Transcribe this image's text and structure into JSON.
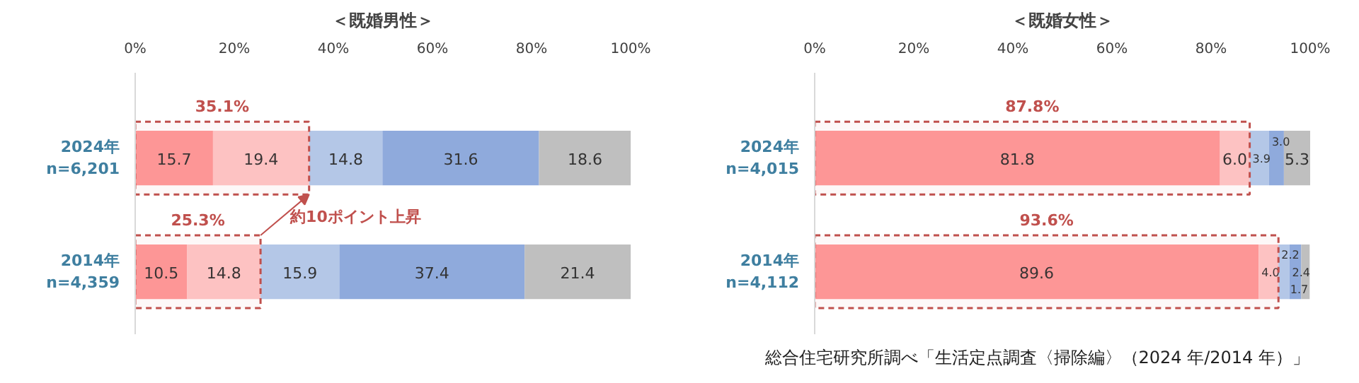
{
  "chart_data": [
    {
      "type": "bar",
      "title": "＜既婚男性＞",
      "orientation": "horizontal",
      "stacked": true,
      "grid": false,
      "categories": [
        "2024年\nn=6,201",
        "2014年\nn=4,359"
      ],
      "series": [
        {
          "color": "#ff9999",
          "values": [
            15.7,
            10.5
          ],
          "value_labels": [
            "15.7",
            "10.5"
          ]
        },
        {
          "color": "#ffc7c7",
          "values": [
            19.4,
            14.8
          ],
          "value_labels": [
            "19.4",
            "14.8"
          ]
        },
        {
          "color": "#b4c7e7",
          "values": [
            14.8,
            15.9
          ],
          "value_labels": [
            "14.8",
            "15.9"
          ]
        },
        {
          "color": "#8faadc",
          "values": [
            31.6,
            37.4
          ],
          "value_labels": [
            "31.6",
            "37.4"
          ]
        },
        {
          "color": "#bfbfbf",
          "values": [
            18.6,
            21.4
          ],
          "value_labels": [
            "18.6",
            "21.4"
          ]
        }
      ],
      "xlim": [
        0,
        100
      ],
      "xticks": [
        {
          "value": 0,
          "label": "0%"
        },
        {
          "value": 20,
          "label": "20%"
        },
        {
          "value": 40,
          "label": "40%"
        },
        {
          "value": 60,
          "label": "60%"
        },
        {
          "value": 80,
          "label": "80%"
        },
        {
          "value": 100,
          "label": "100%"
        }
      ],
      "bands": [
        {
          "axis": "x",
          "from": 0,
          "to": 35.1,
          "label": "35.1%",
          "color": "#c0504d"
        },
        {
          "axis": "x",
          "from": 0,
          "to": 25.3,
          "label": "25.3%",
          "color": "#c0504d"
        }
      ],
      "annotations": [
        "約10ポイント上昇"
      ]
    },
    {
      "type": "bar",
      "title": "＜既婚女性＞",
      "orientation": "horizontal",
      "stacked": true,
      "grid": false,
      "categories": [
        "2024年\nn=4,015",
        "2014年\nn=4,112"
      ],
      "series": [
        {
          "color": "#ff9999",
          "values": [
            81.8,
            89.6
          ],
          "value_labels": [
            "81.8",
            "89.6"
          ]
        },
        {
          "color": "#ffc7c7",
          "values": [
            6.0,
            4.0
          ],
          "value_labels": [
            "6.0",
            "4.0"
          ]
        },
        {
          "color": "#b4c7e7",
          "values": [
            3.9,
            2.2
          ],
          "value_labels": [
            "3.9",
            "2.2"
          ]
        },
        {
          "color": "#8faadc",
          "values": [
            3.0,
            2.4
          ],
          "value_labels": [
            "3.0",
            "2.4"
          ]
        },
        {
          "color": "#bfbfbf",
          "values": [
            5.3,
            1.7
          ],
          "value_labels": [
            "5.3",
            "1.7"
          ]
        }
      ],
      "xlim": [
        0,
        100
      ],
      "xticks": [
        {
          "value": 0,
          "label": "0%"
        },
        {
          "value": 20,
          "label": "20%"
        },
        {
          "value": 40,
          "label": "40%"
        },
        {
          "value": 60,
          "label": "60%"
        },
        {
          "value": 80,
          "label": "80%"
        },
        {
          "value": 100,
          "label": "100%"
        }
      ],
      "bands": [
        {
          "axis": "x",
          "from": 0,
          "to": 87.8,
          "label": "87.8%",
          "color": "#c0504d"
        },
        {
          "axis": "x",
          "from": 0,
          "to": 93.6,
          "label": "93.6%",
          "color": "#c0504d"
        }
      ],
      "annotations": [
        "総合住宅研究所調べ「生活定点調査〈掃除編〉（2024 年/2014 年）」"
      ]
    }
  ]
}
